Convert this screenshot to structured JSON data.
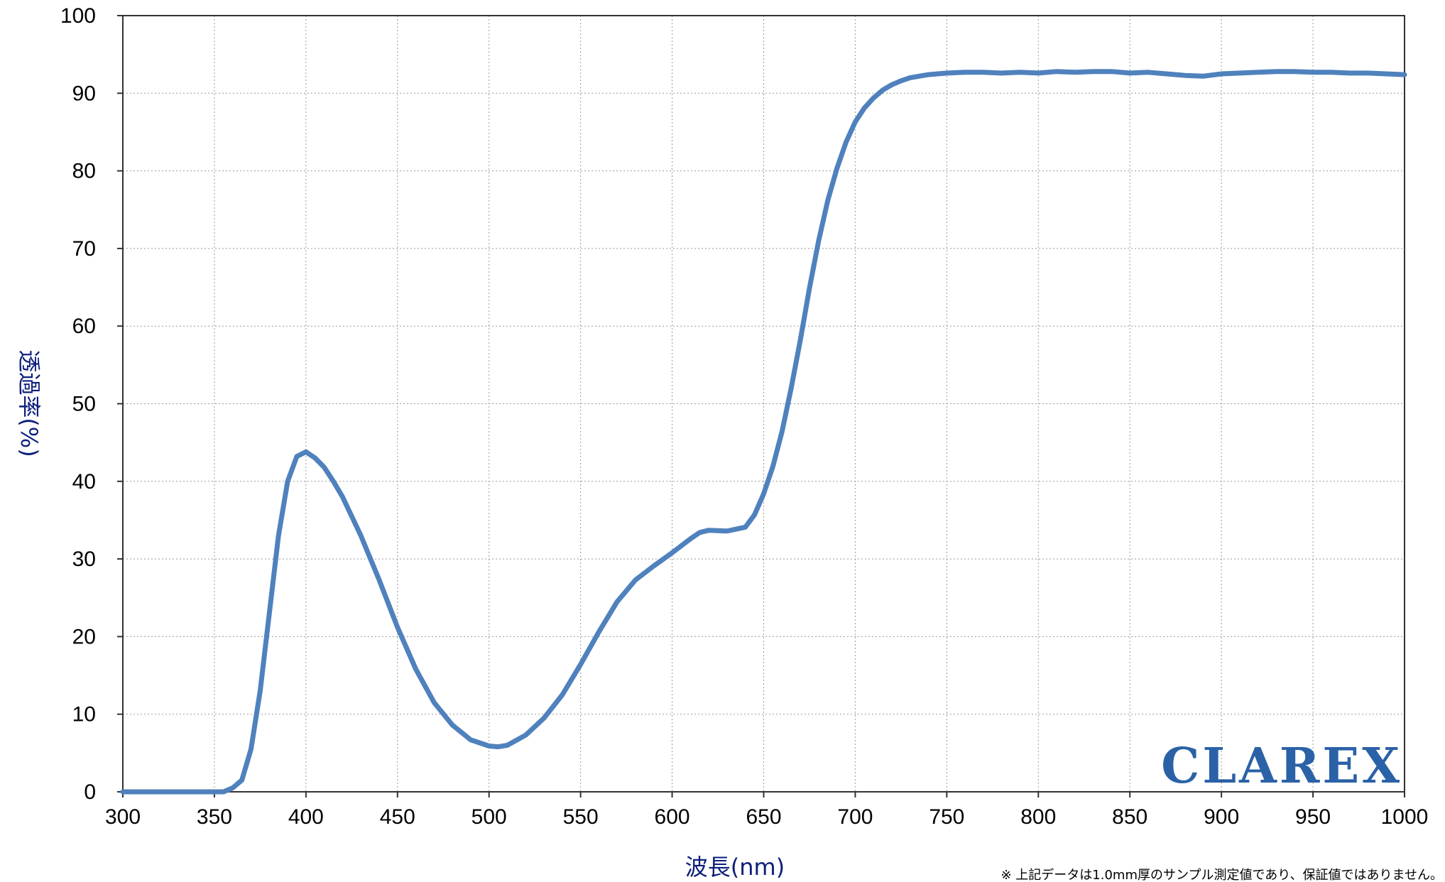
{
  "chart_data": {
    "type": "line",
    "title": "",
    "xlabel": "波長(nm)",
    "ylabel": "透過率(%)",
    "xlim": [
      300,
      1000
    ],
    "ylim": [
      0,
      100
    ],
    "x_ticks": [
      "300",
      "350",
      "400",
      "450",
      "500",
      "550",
      "600",
      "650",
      "700",
      "750",
      "800",
      "850",
      "900",
      "950",
      "1000"
    ],
    "y_ticks": [
      "0",
      "10",
      "20",
      "30",
      "40",
      "50",
      "60",
      "70",
      "80",
      "90",
      "100"
    ],
    "grid": true,
    "legend": "none",
    "line_color": "#4f81bd",
    "series": [
      {
        "x": [
          300,
          310,
          320,
          330,
          340,
          350,
          355,
          360,
          365,
          370,
          375,
          380,
          385,
          390,
          395,
          400,
          405,
          410,
          415,
          420,
          430,
          440,
          450,
          460,
          470,
          480,
          490,
          500,
          505,
          510,
          520,
          530,
          540,
          550,
          560,
          570,
          580,
          590,
          600,
          610,
          615,
          620,
          630,
          640,
          645,
          650,
          655,
          660,
          665,
          670,
          675,
          680,
          685,
          690,
          695,
          700,
          705,
          710,
          715,
          720,
          725,
          730,
          740,
          750,
          760,
          770,
          780,
          790,
          800,
          810,
          820,
          830,
          840,
          850,
          860,
          870,
          880,
          890,
          900,
          910,
          920,
          930,
          940,
          950,
          960,
          970,
          980,
          990,
          1000
        ],
        "y": [
          0,
          0,
          0,
          0,
          0,
          0,
          0,
          0.5,
          1.5,
          5.5,
          13,
          23,
          33,
          40,
          43.2,
          43.8,
          43,
          41.8,
          40,
          38,
          33,
          27.3,
          21.2,
          15.8,
          11.5,
          8.6,
          6.7,
          5.9,
          5.8,
          6,
          7.3,
          9.5,
          12.5,
          16.4,
          20.6,
          24.5,
          27.3,
          29.1,
          30.8,
          32.6,
          33.4,
          33.7,
          33.6,
          34.1,
          35.7,
          38.4,
          41.9,
          46.4,
          52,
          58.2,
          64.9,
          71,
          76.2,
          80.3,
          83.7,
          86.3,
          88.1,
          89.4,
          90.4,
          91.1,
          91.6,
          92,
          92.4,
          92.6,
          92.7,
          92.7,
          92.6,
          92.7,
          92.6,
          92.8,
          92.7,
          92.8,
          92.8,
          92.6,
          92.7,
          92.5,
          92.3,
          92.2,
          92.5,
          92.6,
          92.7,
          92.8,
          92.8,
          92.7,
          92.7,
          92.6,
          92.6,
          92.5,
          92.4
        ]
      }
    ]
  },
  "logo_text": "CLAREX",
  "footnote": "※ 上記データは1.0mm厚のサンプル測定値であり、保証値ではありません。"
}
